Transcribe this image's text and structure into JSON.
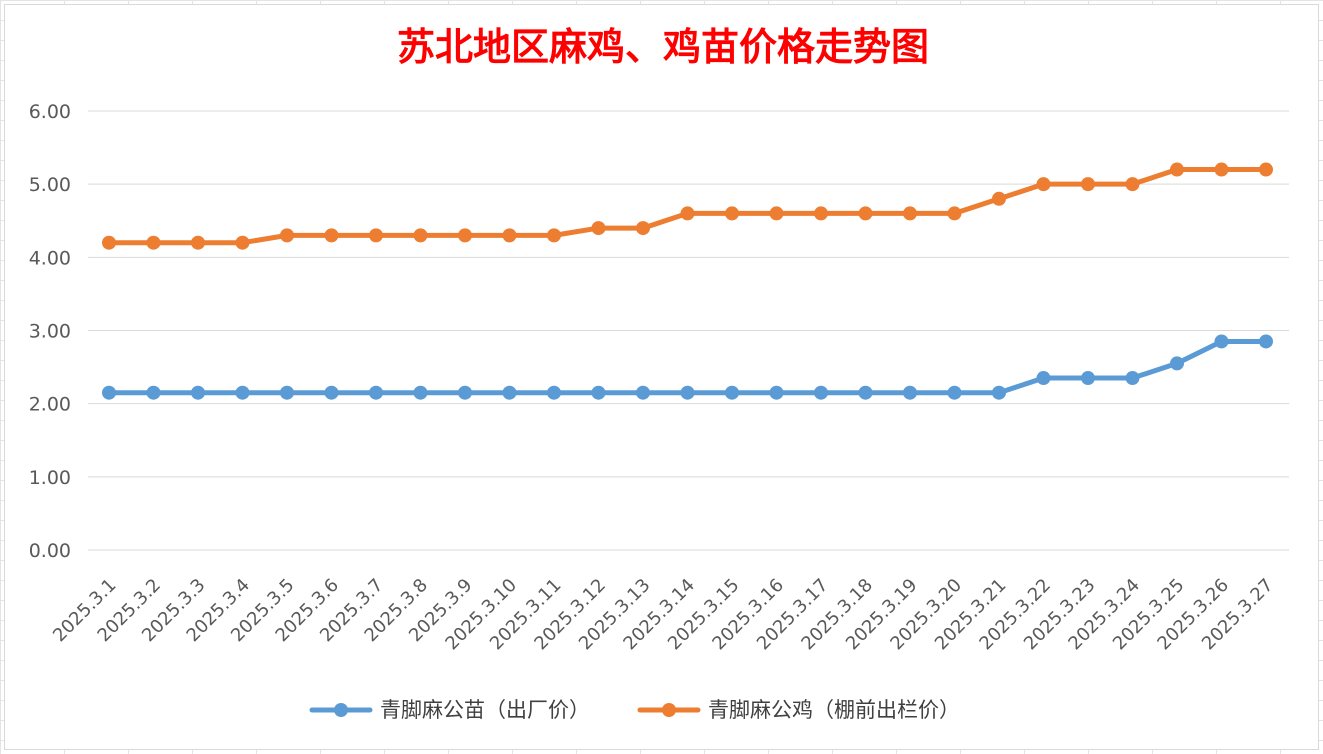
{
  "chart_data": {
    "type": "line",
    "title": "苏北地区麻鸡、鸡苗价格走势图",
    "xlabel": "",
    "ylabel": "",
    "ylim": [
      0,
      6
    ],
    "y_ticks": [
      "0.00",
      "1.00",
      "2.00",
      "3.00",
      "4.00",
      "5.00",
      "6.00"
    ],
    "grid": "horizontal",
    "legend_position": "bottom",
    "categories": [
      "2025.3.1",
      "2025.3.2",
      "2025.3.3",
      "2025.3.4",
      "2025.3.5",
      "2025.3.6",
      "2025.3.7",
      "2025.3.8",
      "2025.3.9",
      "2025.3.10",
      "2025.3.11",
      "2025.3.12",
      "2025.3.13",
      "2025.3.14",
      "2025.3.15",
      "2025.3.16",
      "2025.3.17",
      "2025.3.18",
      "2025.3.19",
      "2025.3.20",
      "2025.3.21",
      "2025.3.22",
      "2025.3.23",
      "2025.3.24",
      "2025.3.25",
      "2025.3.26",
      "2025.3.27"
    ],
    "series": [
      {
        "name": "青脚麻公苗（出厂价）",
        "color": "#5b9bd5",
        "values": [
          2.15,
          2.15,
          2.15,
          2.15,
          2.15,
          2.15,
          2.15,
          2.15,
          2.15,
          2.15,
          2.15,
          2.15,
          2.15,
          2.15,
          2.15,
          2.15,
          2.15,
          2.15,
          2.15,
          2.15,
          2.15,
          2.35,
          2.35,
          2.35,
          2.55,
          2.85,
          2.85
        ]
      },
      {
        "name": "青脚麻公鸡（棚前出栏价）",
        "color": "#ed7d31",
        "values": [
          4.2,
          4.2,
          4.2,
          4.2,
          4.3,
          4.3,
          4.3,
          4.3,
          4.3,
          4.3,
          4.3,
          4.4,
          4.4,
          4.6,
          4.6,
          4.6,
          4.6,
          4.6,
          4.6,
          4.6,
          4.8,
          5.0,
          5.0,
          5.0,
          5.2,
          5.2,
          5.2
        ]
      }
    ]
  }
}
